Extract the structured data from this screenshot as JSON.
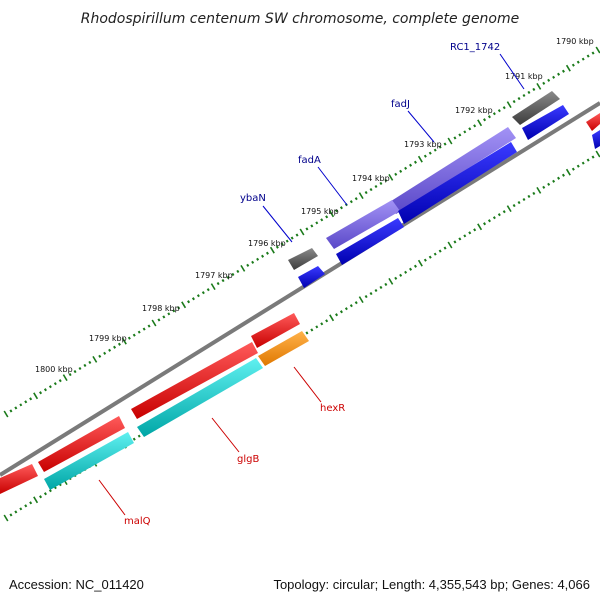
{
  "title": "Rhodospirillum centenum SW chromosome, complete genome",
  "footer": {
    "accession": "Accession: NC_011420",
    "topology": "Topology: circular; Length: 4,355,543 bp; Genes: 4,066"
  },
  "colors": {
    "backbone": "#7a7a7a",
    "tick": "#1a7a1a",
    "gene_label_blue": "#00008b",
    "gene_label_red": "#cc0000"
  },
  "ruler": {
    "unit": "kbp",
    "labels": [
      "1790 kbp",
      "1791 kbp",
      "1792 kbp",
      "1793 kbp",
      "1794 kbp",
      "1795 kbp",
      "1796 kbp",
      "1797 kbp",
      "1798 kbp",
      "1799 kbp",
      "1800 kbp"
    ]
  },
  "genes": [
    {
      "name": "RC1_1742",
      "strand": "outer",
      "color": "#555555",
      "label": "RC1_1742",
      "label_color": "#00008b"
    },
    {
      "name": "fadJ",
      "strand": "outer",
      "color": "#7b68ee",
      "label": "fadJ",
      "label_color": "#00008b"
    },
    {
      "name": "fadA",
      "strand": "outer",
      "color": "#7b68ee",
      "label": "fadA",
      "label_color": "#00008b"
    },
    {
      "name": "ybaN",
      "strand": "outer",
      "color": "#555555",
      "label": "ybaN",
      "label_color": "#00008b"
    },
    {
      "name": "hexR",
      "strand": "inner",
      "color": "#ff8c00",
      "label": "hexR",
      "label_color": "#cc0000"
    },
    {
      "name": "glgB",
      "strand": "inner",
      "color": "#00cccc",
      "label": "glgB",
      "label_color": "#cc0000"
    },
    {
      "name": "malQ",
      "strand": "inner",
      "color": "#00cccc",
      "label": "malQ",
      "label_color": "#cc0000"
    }
  ],
  "cds_tracks": [
    "#0000ff",
    "#ff0000"
  ]
}
